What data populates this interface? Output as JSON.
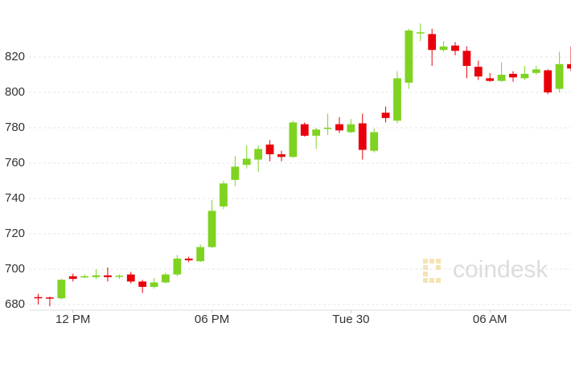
{
  "chart_data": {
    "type": "candlestick",
    "watermark": "coindesk",
    "x": [
      10.5,
      11,
      11.5,
      12,
      12.5,
      13,
      13.5,
      14,
      14.5,
      15,
      15.5,
      16,
      16.5,
      17,
      17.5,
      18,
      18.5,
      19,
      19.5,
      20,
      20.5,
      21,
      21.5,
      22,
      22.5,
      23,
      23.5,
      24,
      24.5,
      25,
      25.5,
      26,
      26.5,
      27,
      27.5,
      28,
      28.5,
      29,
      29.5,
      30,
      30.5,
      31,
      31.5,
      32,
      32.5,
      33,
      33.5
    ],
    "open": [
      684.2,
      684,
      683.5,
      696,
      695.5,
      695.5,
      696.5,
      695.8,
      697,
      693,
      690,
      692.5,
      697,
      706,
      704.5,
      712.5,
      735.5,
      750.5,
      759,
      762,
      770.5,
      765,
      763.5,
      782,
      775.5,
      779.5,
      782,
      777.5,
      782.5,
      767,
      788.5,
      784,
      805.5,
      833.5,
      833,
      824,
      826.5,
      823.5,
      814.5,
      808,
      806.5,
      810.5,
      808,
      811,
      812.5,
      802,
      816
    ],
    "high": [
      686,
      684.5,
      694.5,
      697.5,
      697,
      700,
      701,
      697,
      698.5,
      694,
      695,
      698,
      708,
      707,
      714,
      739,
      750,
      764,
      770,
      770,
      773,
      767,
      784,
      783,
      780,
      788,
      786,
      785,
      788,
      779.5,
      792,
      812,
      836,
      839,
      836,
      829,
      828.5,
      826,
      818,
      811,
      817,
      812,
      815,
      815,
      813,
      823,
      826
    ],
    "low": [
      680,
      679,
      683,
      693,
      695,
      694.5,
      693,
      694.5,
      692,
      686.5,
      689,
      692,
      696,
      704,
      704,
      712,
      734,
      747,
      757,
      755,
      761,
      761,
      763,
      775,
      768,
      776,
      777,
      777,
      762,
      766,
      783,
      782.5,
      802,
      829,
      815,
      823,
      821,
      808,
      807,
      806,
      806,
      806,
      807,
      810,
      799,
      800,
      812
    ],
    "close": [
      683.6,
      683.5,
      694,
      694.5,
      696,
      696.5,
      695.5,
      696.3,
      693,
      690,
      692.5,
      697,
      706,
      705,
      712.5,
      733,
      748.5,
      758,
      762.5,
      768,
      765,
      763.5,
      783,
      775.5,
      779,
      780,
      778.5,
      782,
      767.5,
      777.5,
      785.5,
      808,
      835,
      834,
      824,
      826,
      823.5,
      815,
      809,
      806.5,
      810,
      808.5,
      810.5,
      813,
      800,
      816,
      813.5
    ],
    "up_color": "#7ed321",
    "down_color": "#e8000b",
    "xlim": [
      10.1,
      33.5
    ],
    "ylim": [
      677,
      841
    ],
    "xticks": [
      {
        "value": 12,
        "label": "12 PM"
      },
      {
        "value": 18,
        "label": "06 PM"
      },
      {
        "value": 24,
        "label": "Tue 30"
      },
      {
        "value": 30,
        "label": "06 AM"
      }
    ],
    "yticks": [
      680,
      700,
      720,
      740,
      760,
      780,
      800,
      820
    ],
    "grid": true
  }
}
